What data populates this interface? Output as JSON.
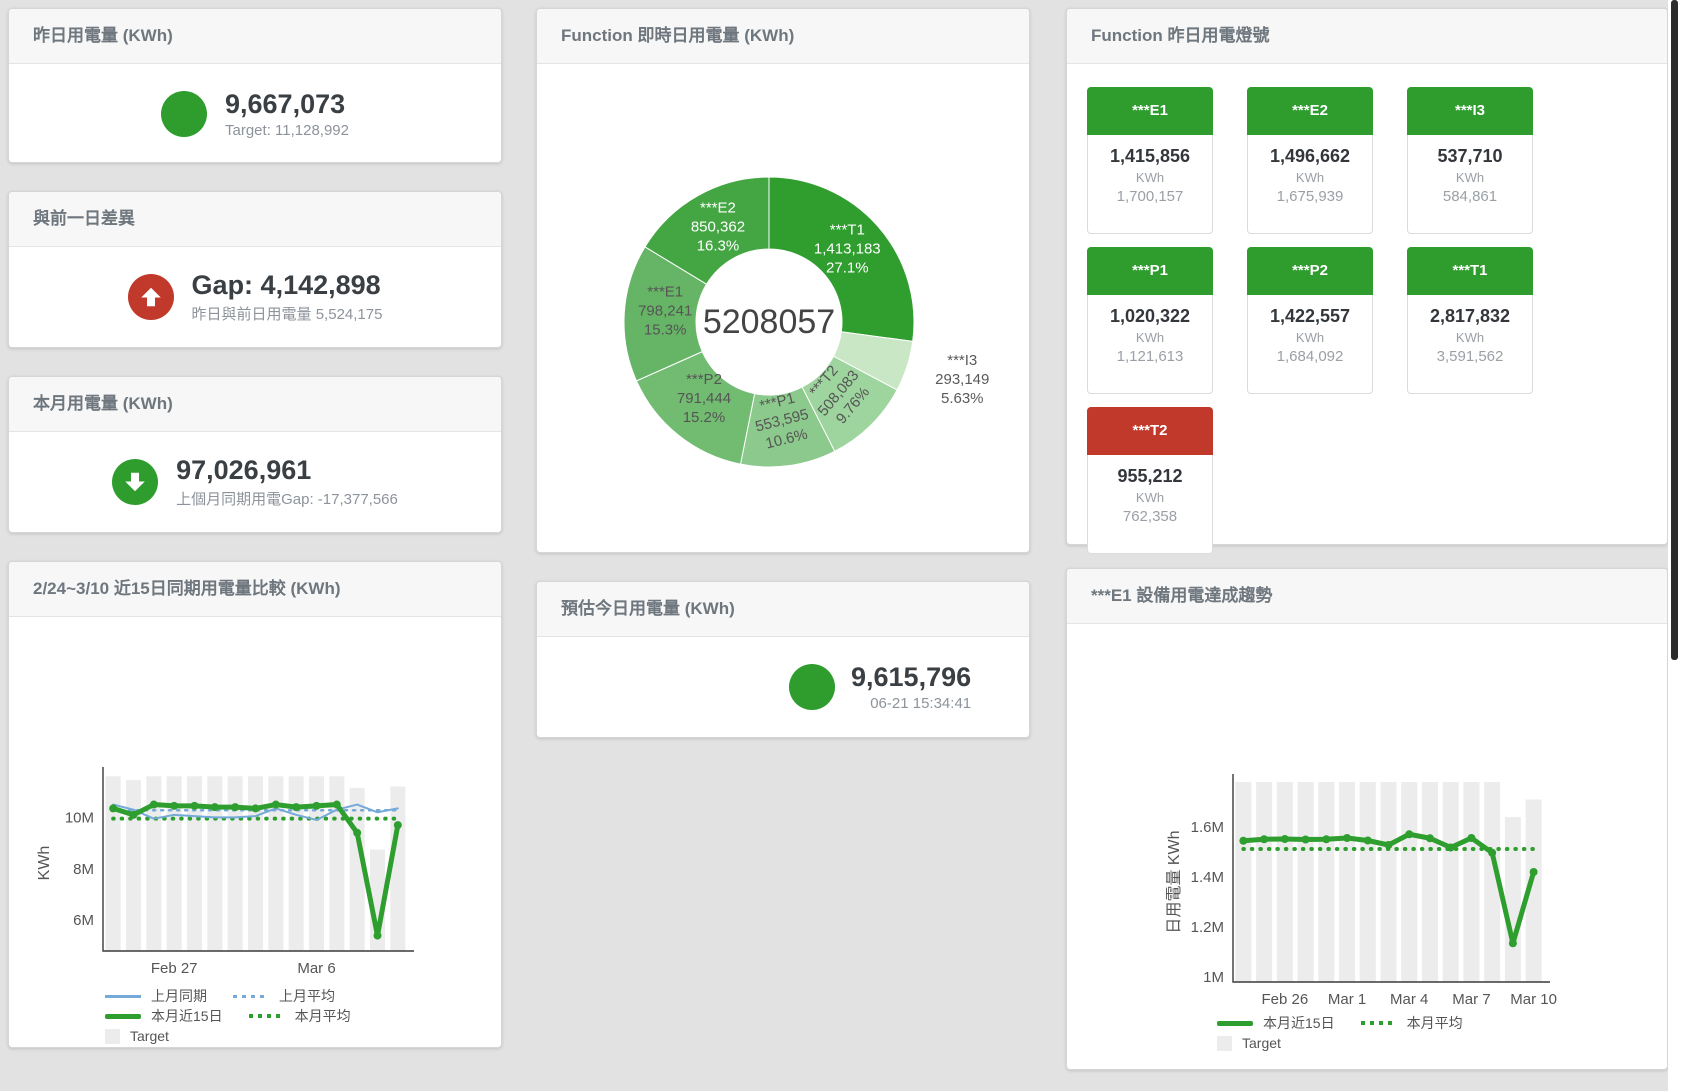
{
  "colors": {
    "green": "#2e9d2e",
    "red": "#c0392b",
    "blue": "#74a9d8",
    "bar_gray": "#ececec"
  },
  "stat_cards": {
    "yesterday": {
      "title": "昨日用電量 (KWh)",
      "value": "9,667,073",
      "sub": "Target: 11,128,992",
      "icon": "circle",
      "icon_color": "#2e9d2e"
    },
    "gap": {
      "title": "與前一日差異",
      "value": "Gap: 4,142,898",
      "sub": "昨日與前日用電量 5,524,175",
      "icon": "arrow-up",
      "icon_color": "#c0392b"
    },
    "month": {
      "title": "本月用電量 (KWh)",
      "value": "97,026,961",
      "sub": "上個月同期用電Gap: -17,377,566",
      "icon": "arrow-down",
      "icon_color": "#2e9d2e"
    },
    "estimate": {
      "title": "預估今日用電量 (KWh)",
      "value": "9,615,796",
      "sub": "06-21 15:34:41",
      "icon": "circle",
      "icon_color": "#2e9d2e"
    }
  },
  "lights": {
    "title": "Function 昨日用電燈號",
    "tiles": [
      {
        "label": "***E1",
        "value": "1,415,856",
        "unit": "KWh",
        "target": "1,700,157",
        "status": "green"
      },
      {
        "label": "***E2",
        "value": "1,496,662",
        "unit": "KWh",
        "target": "1,675,939",
        "status": "green"
      },
      {
        "label": "***I3",
        "value": "537,710",
        "unit": "KWh",
        "target": "584,861",
        "status": "green"
      },
      {
        "label": "***P1",
        "value": "1,020,322",
        "unit": "KWh",
        "target": "1,121,613",
        "status": "green"
      },
      {
        "label": "***P2",
        "value": "1,422,557",
        "unit": "KWh",
        "target": "1,684,092",
        "status": "green"
      },
      {
        "label": "***T1",
        "value": "2,817,832",
        "unit": "KWh",
        "target": "3,591,562",
        "status": "green"
      },
      {
        "label": "***T2",
        "value": "955,212",
        "unit": "KWh",
        "target": "762,358",
        "status": "red"
      }
    ]
  },
  "chart_data": [
    {
      "id": "donut",
      "type": "pie",
      "title": "Function 即時日用電量 (KWh)",
      "center_label": "5208057",
      "unit": "KWh",
      "slices": [
        {
          "name": "***T1",
          "value": 1413183,
          "label": "1,413,183",
          "pct": "27.1%",
          "color": "#2f9e2f",
          "text": "#ffffff",
          "rotate": 0,
          "outside": false
        },
        {
          "name": "***I3",
          "value": 293149,
          "label": "293,149",
          "pct": "5.63%",
          "color": "#c9e6c5",
          "text": "#5a5a5a",
          "rotate": 0,
          "outside": true
        },
        {
          "name": "***T2",
          "value": 508083,
          "label": "508,083",
          "pct": "9.76%",
          "color": "#9ed49e",
          "text": "#555555",
          "rotate": -50,
          "outside": false
        },
        {
          "name": "***P1",
          "value": 553595,
          "label": "553,595",
          "pct": "10.6%",
          "color": "#8cc98c",
          "text": "#555555",
          "rotate": -14,
          "outside": false
        },
        {
          "name": "***P2",
          "value": 791444,
          "label": "791,444",
          "pct": "15.2%",
          "color": "#72bc72",
          "text": "#555555",
          "rotate": 0,
          "outside": false
        },
        {
          "name": "***E1",
          "value": 798241,
          "label": "798,241",
          "pct": "15.3%",
          "color": "#66b566",
          "text": "#555555",
          "rotate": 0,
          "outside": false
        },
        {
          "name": "***E2",
          "value": 850362,
          "label": "850,362",
          "pct": "16.3%",
          "color": "#43a643",
          "text": "#ffffff",
          "rotate": 0,
          "outside": false
        }
      ]
    },
    {
      "id": "compare15",
      "type": "line",
      "title": "2/24~3/10 近15日同期用電量比較 (KWh)",
      "ylabel": "KWh",
      "ylim": [
        4.8,
        11.65
      ],
      "categories": [
        "2/24",
        "2/25",
        "2/26",
        "2/27",
        "2/28",
        "3/1",
        "3/2",
        "3/3",
        "3/4",
        "3/5",
        "3/6",
        "3/7",
        "3/8",
        "3/9",
        "3/10"
      ],
      "yticks": [
        {
          "v": 6,
          "label": "6M"
        },
        {
          "v": 8,
          "label": "8M"
        },
        {
          "v": 10,
          "label": "10M"
        }
      ],
      "xticks": [
        {
          "i": 3,
          "label": "Feb 27"
        },
        {
          "i": 10,
          "label": "Mar 6"
        }
      ],
      "target": {
        "name": "Target",
        "color": "#ececec",
        "values": [
          11.6,
          11.45,
          11.6,
          11.6,
          11.6,
          11.6,
          11.6,
          11.6,
          11.6,
          11.6,
          11.6,
          11.6,
          11.15,
          8.75,
          11.2
        ]
      },
      "series": [
        {
          "name": "上月平均",
          "avg": true,
          "value": 10.28,
          "color": "#74a9d8",
          "width": 2.5,
          "dash": "2 6",
          "markers": false
        },
        {
          "name": "本月平均",
          "avg": true,
          "value": 9.95,
          "color": "#2e9e2e",
          "width": 4,
          "dash": "0.5 8",
          "markers": false
        },
        {
          "name": "上月同期",
          "avg": false,
          "values": [
            10.5,
            10.3,
            9.95,
            10.1,
            10.05,
            10.0,
            10.0,
            10.05,
            10.35,
            10.1,
            9.9,
            10.3,
            10.5,
            10.2,
            10.35
          ],
          "color": "#74a9d8",
          "width": 2,
          "dash": null,
          "markers": false
        },
        {
          "name": "本月近15日",
          "avg": false,
          "values": [
            10.35,
            10.1,
            10.5,
            10.45,
            10.45,
            10.4,
            10.4,
            10.35,
            10.5,
            10.4,
            10.45,
            10.5,
            9.4,
            5.4,
            9.7
          ],
          "color": "#2e9e2e",
          "width": 5,
          "dash": null,
          "markers": true
        }
      ],
      "legend_rows": [
        [
          {
            "label": "上月同期",
            "swatch": "blueline"
          },
          {
            "label": "上月平均",
            "swatch": "bluedash"
          }
        ],
        [
          {
            "label": "本月近15日",
            "swatch": "greenline"
          },
          {
            "label": "本月平均",
            "swatch": "greendot"
          }
        ],
        [
          {
            "label": "Target",
            "swatch": "graysq"
          }
        ]
      ]
    },
    {
      "id": "e1trend",
      "type": "line",
      "title": "***E1 設備用電達成趨勢",
      "ylabel": "日用電量 KWh",
      "ylim": [
        0.98,
        1.78
      ],
      "categories": [
        "2/24",
        "2/25",
        "2/26",
        "2/27",
        "2/28",
        "3/1",
        "3/2",
        "3/3",
        "3/4",
        "3/5",
        "3/6",
        "3/7",
        "3/8",
        "3/9",
        "3/10"
      ],
      "yticks": [
        {
          "v": 1,
          "label": "1M"
        },
        {
          "v": 1.2,
          "label": "1.2M"
        },
        {
          "v": 1.4,
          "label": "1.4M"
        },
        {
          "v": 1.6,
          "label": "1.6M"
        }
      ],
      "xticks": [
        {
          "i": 2,
          "label": "Feb 26"
        },
        {
          "i": 5,
          "label": "Mar 1"
        },
        {
          "i": 8,
          "label": "Mar 4"
        },
        {
          "i": 11,
          "label": "Mar 7"
        },
        {
          "i": 14,
          "label": "Mar 10"
        }
      ],
      "target": {
        "name": "Target",
        "color": "#ececec",
        "values": [
          1.78,
          1.78,
          1.78,
          1.78,
          1.78,
          1.78,
          1.78,
          1.78,
          1.78,
          1.78,
          1.78,
          1.78,
          1.78,
          1.64,
          1.71
        ]
      },
      "series": [
        {
          "name": "本月平均",
          "avg": true,
          "value": 1.512,
          "color": "#2e9e2e",
          "width": 4,
          "dash": "0.5 8",
          "markers": false
        },
        {
          "name": "本月近15日",
          "avg": false,
          "values": [
            1.545,
            1.551,
            1.552,
            1.55,
            1.551,
            1.556,
            1.546,
            1.528,
            1.571,
            1.555,
            1.518,
            1.556,
            1.497,
            1.135,
            1.42
          ],
          "color": "#2e9e2e",
          "width": 5,
          "dash": null,
          "markers": true
        }
      ],
      "legend_rows": [
        [
          {
            "label": "本月近15日",
            "swatch": "greenline"
          },
          {
            "label": "本月平均",
            "swatch": "greendot"
          }
        ],
        [
          {
            "label": "Target",
            "swatch": "graysq"
          }
        ]
      ]
    }
  ]
}
